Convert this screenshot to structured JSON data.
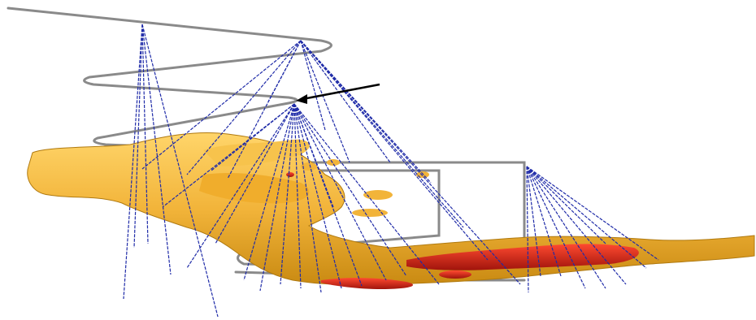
{
  "scene": {
    "description_visible_text": "",
    "colors": {
      "background": "#ffffff",
      "orebody_gold": "#f2b43a",
      "orebody_gold_dark": "#c98a12",
      "high_grade_red": "#cc1f14",
      "drill_hole_blue": "#1f2ba8",
      "underground_workings_gray": "#8a8a8a",
      "pointer_arrow": "#000000"
    }
  }
}
